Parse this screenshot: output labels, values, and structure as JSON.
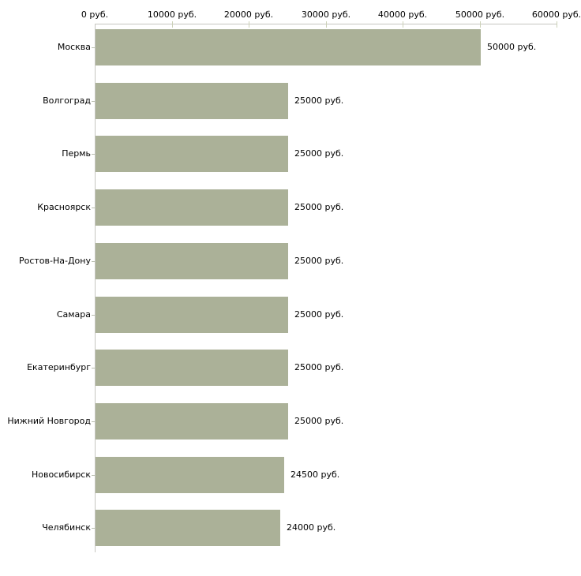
{
  "chart_data": {
    "type": "bar",
    "orientation": "horizontal",
    "title": "",
    "xlabel": "",
    "ylabel": "",
    "xlim": [
      0,
      60000
    ],
    "grid": false,
    "legend": false,
    "background": "#ffffff",
    "bar_color": "#abb198",
    "axis_color": "#c6c6c0",
    "x_tick_color": "#ccd1b8",
    "cat_tick_color": "#b8bdae",
    "text_color": "#000000",
    "categories": [
      "Москва",
      "Волгоград",
      "Пермь",
      "Красноярск",
      "Ростов-На-Дону",
      "Самара",
      "Екатеринбург",
      "Нижний Новгород",
      "Новосибирск",
      "Челябинск"
    ],
    "values": [
      50000,
      25000,
      25000,
      25000,
      25000,
      25000,
      25000,
      25000,
      24500,
      24000
    ],
    "value_labels": [
      "50000 руб.",
      "25000 руб.",
      "25000 руб.",
      "25000 руб.",
      "25000 руб.",
      "25000 руб.",
      "25000 руб.",
      "25000 руб.",
      "24500 руб.",
      "24000 руб."
    ],
    "x_ticks": [
      {
        "value": 0,
        "label": "0 руб."
      },
      {
        "value": 10000,
        "label": "10000 руб."
      },
      {
        "value": 20000,
        "label": "20000 руб."
      },
      {
        "value": 30000,
        "label": "30000 руб."
      },
      {
        "value": 40000,
        "label": "40000 руб."
      },
      {
        "value": 50000,
        "label": "50000 руб."
      },
      {
        "value": 60000,
        "label": "60000 руб."
      }
    ]
  }
}
